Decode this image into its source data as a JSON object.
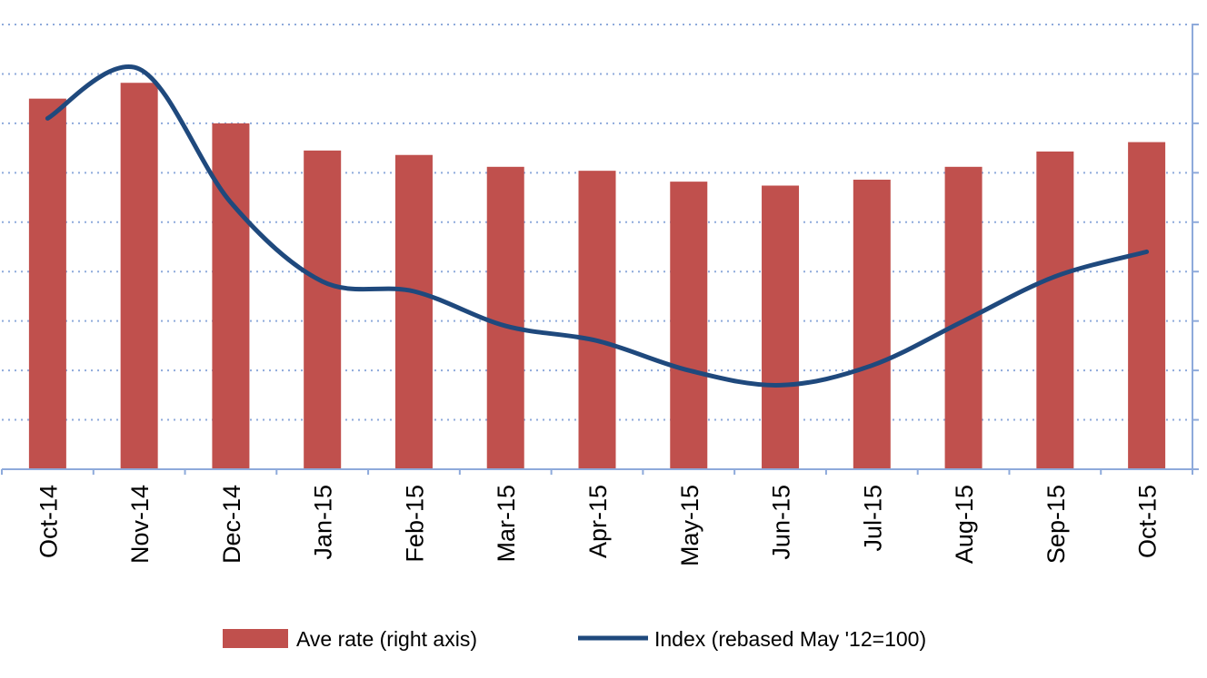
{
  "chart_data": {
    "type": "bar",
    "categories": [
      "Oct-14",
      "Nov-14",
      "Dec-14",
      "Jan-15",
      "Feb-15",
      "Mar-15",
      "Apr-15",
      "May-15",
      "Jun-15",
      "Jul-15",
      "Aug-15",
      "Sep-15",
      "Oct-15"
    ],
    "series": [
      {
        "name": "Ave rate (right axis)",
        "type": "bar",
        "axis": "right",
        "color": "#c0504d",
        "values": [
          7.5,
          7.82,
          7.0,
          6.45,
          6.36,
          6.12,
          6.04,
          5.82,
          5.74,
          5.86,
          6.12,
          6.43,
          6.62
        ]
      },
      {
        "name": "Index (rebased May '12=100)",
        "type": "line",
        "axis": "left",
        "color": "#1f497d",
        "values": [
          7.1,
          8.1,
          5.4,
          3.8,
          3.6,
          2.9,
          2.6,
          2.0,
          1.7,
          2.1,
          3.0,
          3.9,
          4.4
        ]
      }
    ],
    "ylim": [
      0,
      9
    ],
    "y_ticks": [
      0,
      1,
      2,
      3,
      4,
      5,
      6,
      7,
      8,
      9
    ],
    "grid": true,
    "legend_position": "bottom"
  }
}
